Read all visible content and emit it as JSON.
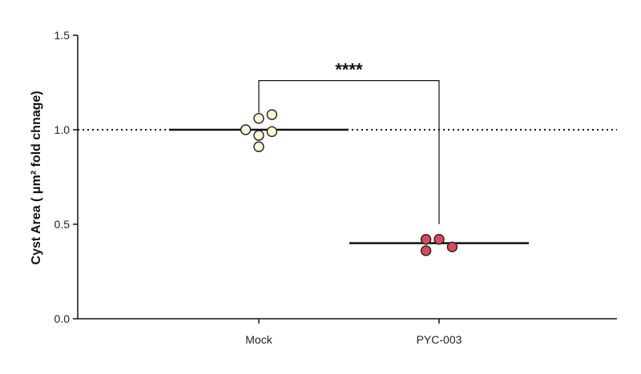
{
  "chart_data": {
    "type": "scatter",
    "title": "",
    "xlabel": "",
    "ylabel": "Cyst Area ( μm² fold chnage)",
    "ylim": [
      0,
      1.5
    ],
    "yticks": [
      "0.0",
      "0.5",
      "1.0",
      "1.5"
    ],
    "categories": [
      "Mock",
      "PYC-003"
    ],
    "reference_line": 1.0,
    "grid": false,
    "series": [
      {
        "category": "Mock",
        "color": "#fff7d6",
        "mean": 1.0,
        "points": [
          {
            "x": -0.2,
            "y": 1.0
          },
          {
            "x": 0.0,
            "y": 1.06
          },
          {
            "x": 0.0,
            "y": 0.97
          },
          {
            "x": 0.0,
            "y": 0.91
          },
          {
            "x": 0.2,
            "y": 1.08
          },
          {
            "x": 0.2,
            "y": 0.99
          }
        ]
      },
      {
        "category": "PYC-003",
        "color": "#d94a5a",
        "mean": 0.4,
        "points": [
          {
            "x": -0.2,
            "y": 0.42
          },
          {
            "x": -0.2,
            "y": 0.36
          },
          {
            "x": 0.0,
            "y": 0.42
          },
          {
            "x": 0.2,
            "y": 0.38
          }
        ]
      }
    ],
    "annotation": {
      "text": "****",
      "from": "Mock",
      "to": "PYC-003"
    }
  }
}
